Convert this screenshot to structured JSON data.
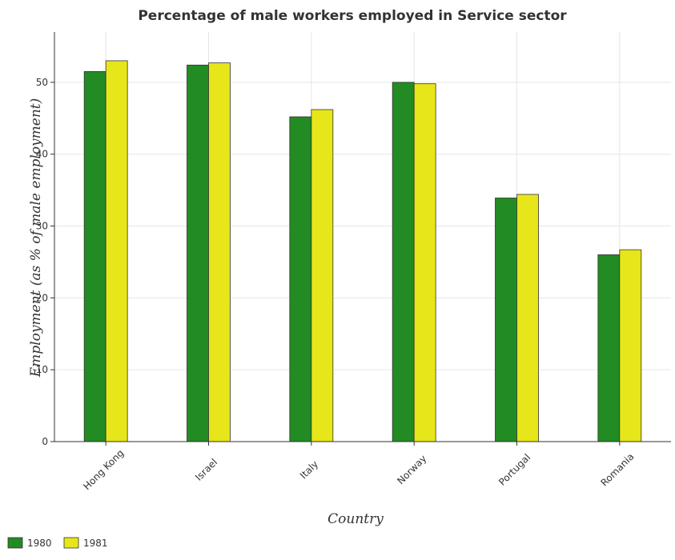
{
  "chart_data": {
    "type": "bar",
    "title": "Percentage of male workers employed in Service sector",
    "xlabel": "Country",
    "ylabel": "Employment (as % of male employment)",
    "categories": [
      "Hong Kong",
      "Israel",
      "Italy",
      "Norway",
      "Portugal",
      "Romania"
    ],
    "series": [
      {
        "name": "1980",
        "color": "#238b23",
        "values": [
          51.5,
          52.4,
          45.2,
          50.0,
          33.9,
          26.0
        ]
      },
      {
        "name": "1981",
        "color": "#e6e61a",
        "values": [
          53.0,
          52.7,
          46.2,
          49.8,
          34.4,
          26.7
        ]
      }
    ],
    "ylim": [
      0,
      57
    ],
    "yticks": [
      0,
      10,
      20,
      30,
      40,
      50
    ],
    "grid": true,
    "legend_position": "bottom-left"
  }
}
